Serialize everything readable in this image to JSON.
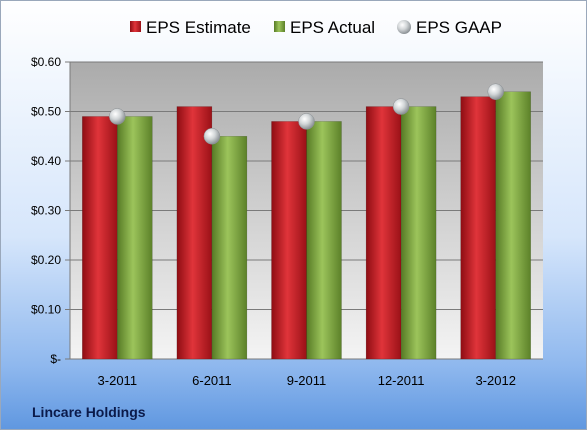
{
  "chart_data": {
    "type": "bar",
    "categories": [
      "3-2011",
      "6-2011",
      "9-2011",
      "12-2011",
      "3-2012"
    ],
    "series": [
      {
        "name": "EPS Estimate",
        "kind": "bar",
        "color": "#c0181f",
        "values": [
          0.49,
          0.51,
          0.48,
          0.51,
          0.53
        ]
      },
      {
        "name": "EPS Actual",
        "kind": "bar",
        "color": "#79a33a",
        "values": [
          0.49,
          0.45,
          0.48,
          0.51,
          0.54
        ]
      },
      {
        "name": "EPS GAAP",
        "kind": "marker",
        "color": "#c4c9cc",
        "values": [
          0.49,
          0.45,
          0.48,
          0.51,
          0.54
        ]
      }
    ],
    "ylim": [
      0,
      0.6
    ],
    "yticks": [
      0,
      0.1,
      0.2,
      0.3,
      0.4,
      0.5,
      0.6
    ],
    "ytick_labels": [
      "$-",
      "$0.10",
      "$0.20",
      "$0.30",
      "$0.40",
      "$0.50",
      "$0.60"
    ],
    "grid": true,
    "legend_position": "top"
  },
  "footer": {
    "company": "Lincare Holdings"
  }
}
